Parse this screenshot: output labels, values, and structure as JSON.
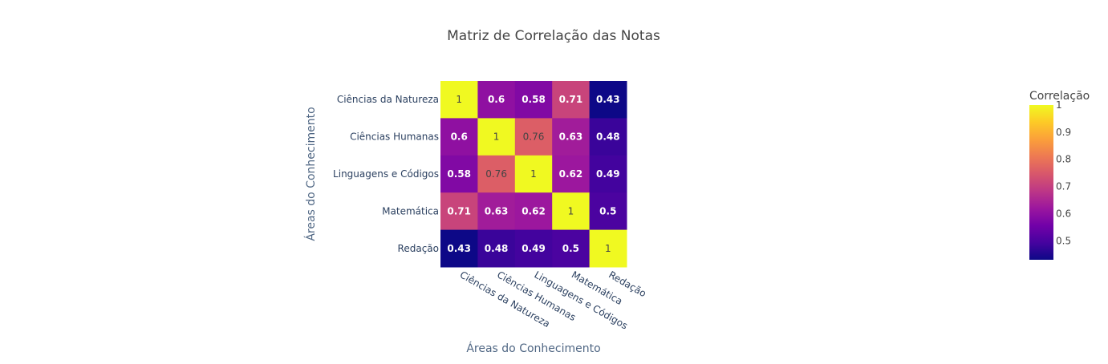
{
  "chart_data": {
    "type": "heatmap",
    "title": "Matriz de Correlação das Notas",
    "xlabel": "Áreas do Conhecimento",
    "ylabel": "Áreas do Conhecimento",
    "x": [
      "Ciências da Natureza",
      "Ciências Humanas",
      "Linguagens e Códigos",
      "Matemática",
      "Redação"
    ],
    "y": [
      "Ciências da Natureza",
      "Ciências Humanas",
      "Linguagens e Códigos",
      "Matemática",
      "Redação"
    ],
    "z": [
      [
        1,
        0.6,
        0.58,
        0.71,
        0.43
      ],
      [
        0.6,
        1,
        0.76,
        0.63,
        0.48
      ],
      [
        0.58,
        0.76,
        1,
        0.62,
        0.49
      ],
      [
        0.71,
        0.63,
        0.62,
        1,
        0.5
      ],
      [
        0.43,
        0.48,
        0.49,
        0.5,
        1
      ]
    ],
    "colorscale": "plasma",
    "zmin": 0.43,
    "zmax": 1,
    "colorbar": {
      "title": "Correlação",
      "ticks": [
        0.5,
        0.6,
        0.7,
        0.8,
        0.9,
        1
      ],
      "tick_labels": [
        "0.5",
        "0.6",
        "0.7",
        "0.8",
        "0.9",
        "1"
      ]
    },
    "plasma_stops": [
      "#0d0887",
      "#46039f",
      "#7201a8",
      "#9c179e",
      "#bd3786",
      "#d8576b",
      "#ed7953",
      "#fb9f3a",
      "#fdca26",
      "#f0f921"
    ]
  }
}
